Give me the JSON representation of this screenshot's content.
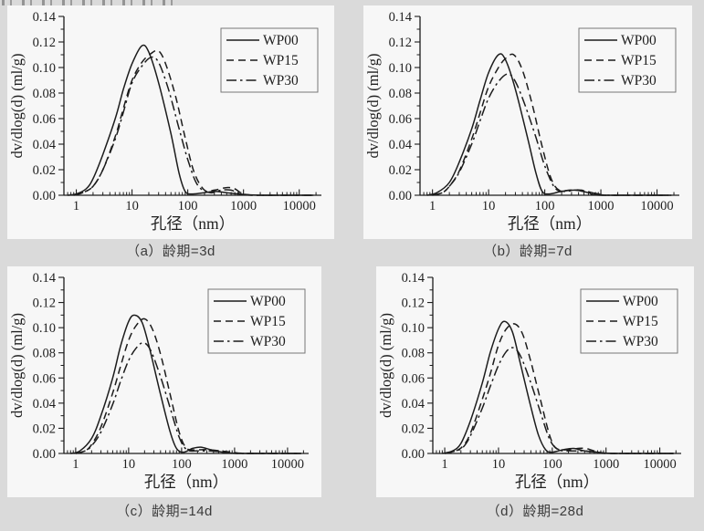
{
  "page": {
    "background": "#dadada",
    "panel_background": "#f7f7f7",
    "line_color": "#1c1c1c"
  },
  "figure": {
    "xlabel": "孔径（nm）",
    "ylabel": "dv/dlog(d) (ml/g)",
    "x_ticks": [
      "1",
      "10",
      "100",
      "1000",
      "10000"
    ],
    "x_tick_values": [
      1,
      10,
      100,
      1000,
      10000
    ],
    "y_ticks": [
      "0.00",
      "0.02",
      "0.04",
      "0.06",
      "0.08",
      "0.10",
      "0.12",
      "0.14"
    ],
    "x_range_log": [
      0.6,
      25000
    ],
    "y_range": [
      0,
      0.14
    ],
    "legend": [
      {
        "label": "WP00",
        "style": "solid"
      },
      {
        "label": "WP15",
        "style": "dashed"
      },
      {
        "label": "WP30",
        "style": "dashdot"
      }
    ]
  },
  "chart_data": [
    {
      "type": "line",
      "title": "（a）龄期=3d",
      "age": "3d",
      "xlabel": "孔径（nm）",
      "ylabel": "dv/dlog(d) (ml/g)",
      "x_axis": "log, 1 to 10000 nm",
      "ylim": [
        0,
        0.14
      ],
      "series": [
        {
          "name": "WP00",
          "style": "solid",
          "x": [
            0.7,
            1,
            1.5,
            2,
            3,
            5,
            7,
            10,
            15,
            20,
            30,
            50,
            70,
            90,
            120,
            200,
            300,
            500,
            800,
            2000,
            18000
          ],
          "y": [
            0,
            0.001,
            0.005,
            0.013,
            0.032,
            0.06,
            0.083,
            0.103,
            0.117,
            0.112,
            0.088,
            0.048,
            0.017,
            0.003,
            0.001,
            0.002,
            0.003,
            0.002,
            0.001,
            0,
            0
          ]
        },
        {
          "name": "WP15",
          "style": "dashed",
          "x": [
            0.9,
            1.3,
            2,
            3,
            5,
            7,
            10,
            15,
            22,
            30,
            40,
            60,
            90,
            130,
            200,
            300,
            500,
            700,
            1000,
            2000,
            18000
          ],
          "y": [
            0,
            0.002,
            0.007,
            0.02,
            0.046,
            0.068,
            0.09,
            0.104,
            0.111,
            0.113,
            0.103,
            0.078,
            0.045,
            0.018,
            0.004,
            0.004,
            0.006,
            0.005,
            0.001,
            0,
            0
          ]
        },
        {
          "name": "WP30",
          "style": "dashdot",
          "x": [
            0.9,
            1.3,
            2,
            3,
            5,
            7,
            10,
            15,
            22,
            30,
            45,
            70,
            100,
            150,
            250,
            400,
            600,
            900,
            1500,
            18000
          ],
          "y": [
            0,
            0.002,
            0.007,
            0.02,
            0.044,
            0.065,
            0.088,
            0.101,
            0.108,
            0.104,
            0.083,
            0.052,
            0.028,
            0.008,
            0.002,
            0.004,
            0.004,
            0.001,
            0,
            0
          ]
        }
      ]
    },
    {
      "type": "line",
      "title": "（b）龄期=7d",
      "age": "7d",
      "xlabel": "孔径（nm）",
      "ylabel": "dv/dlog(d) (ml/g)",
      "x_axis": "log, 1 to 10000 nm",
      "ylim": [
        0,
        0.14
      ],
      "series": [
        {
          "name": "WP00",
          "style": "solid",
          "x": [
            0.8,
            1.2,
            2,
            3,
            5,
            7,
            10,
            15,
            20,
            30,
            50,
            70,
            90,
            120,
            200,
            350,
            600,
            1000,
            18000
          ],
          "y": [
            0,
            0.002,
            0.01,
            0.026,
            0.052,
            0.074,
            0.096,
            0.11,
            0.106,
            0.083,
            0.044,
            0.017,
            0.003,
            0.001,
            0.003,
            0.004,
            0.002,
            0,
            0
          ]
        },
        {
          "name": "WP15",
          "style": "dashed",
          "x": [
            1,
            1.5,
            2,
            3,
            5,
            7,
            10,
            15,
            20,
            28,
            40,
            60,
            90,
            130,
            180,
            280,
            450,
            700,
            1200,
            18000
          ],
          "y": [
            0,
            0.002,
            0.007,
            0.019,
            0.044,
            0.064,
            0.085,
            0.1,
            0.107,
            0.11,
            0.098,
            0.071,
            0.038,
            0.013,
            0.004,
            0.004,
            0.004,
            0.002,
            0,
            0
          ]
        },
        {
          "name": "WP30",
          "style": "dashdot",
          "x": [
            1,
            1.5,
            2,
            3,
            5,
            7,
            10,
            15,
            22,
            30,
            45,
            70,
            100,
            150,
            220,
            350,
            550,
            900,
            1500,
            18000
          ],
          "y": [
            0,
            0.002,
            0.007,
            0.018,
            0.04,
            0.058,
            0.076,
            0.089,
            0.095,
            0.089,
            0.07,
            0.045,
            0.023,
            0.006,
            0.003,
            0.004,
            0.003,
            0.001,
            0,
            0
          ]
        }
      ]
    },
    {
      "type": "line",
      "title": "（c）龄期=14d",
      "age": "14d",
      "xlabel": "孔径（nm）",
      "ylabel": "dv/dlog(d) (ml/g)",
      "x_axis": "log, 1 to 10000 nm",
      "ylim": [
        0,
        0.14
      ],
      "series": [
        {
          "name": "WP00",
          "style": "solid",
          "x": [
            0.8,
            1.2,
            2,
            3,
            5,
            7,
            10,
            13,
            18,
            25,
            40,
            60,
            80,
            110,
            160,
            230,
            350,
            600,
            1200,
            18000
          ],
          "y": [
            0,
            0.002,
            0.012,
            0.03,
            0.06,
            0.085,
            0.105,
            0.11,
            0.104,
            0.083,
            0.047,
            0.018,
            0.004,
            0.001,
            0.004,
            0.005,
            0.003,
            0.001,
            0,
            0
          ]
        },
        {
          "name": "WP15",
          "style": "dashed",
          "x": [
            1,
            1.5,
            2,
            3,
            5,
            7,
            10,
            14,
            20,
            28,
            40,
            60,
            90,
            125,
            200,
            320,
            550,
            900,
            1800,
            18000
          ],
          "y": [
            0,
            0.002,
            0.007,
            0.021,
            0.048,
            0.069,
            0.09,
            0.102,
            0.107,
            0.099,
            0.079,
            0.048,
            0.017,
            0.004,
            0.003,
            0.003,
            0.002,
            0.001,
            0,
            0
          ]
        },
        {
          "name": "WP30",
          "style": "dashdot",
          "x": [
            1,
            1.5,
            2,
            3,
            5,
            7,
            10,
            14,
            19,
            26,
            40,
            60,
            90,
            125,
            200,
            350,
            650,
            1300,
            18000
          ],
          "y": [
            0,
            0.002,
            0.006,
            0.017,
            0.039,
            0.057,
            0.074,
            0.084,
            0.088,
            0.082,
            0.061,
            0.037,
            0.013,
            0.003,
            0.002,
            0.002,
            0.001,
            0,
            0
          ]
        }
      ]
    },
    {
      "type": "line",
      "title": "（d）龄期=28d",
      "age": "28d",
      "xlabel": "孔径（nm）",
      "ylabel": "dv/dlog(d) (ml/g)",
      "x_axis": "log, 1 to 10000 nm",
      "ylim": [
        0,
        0.14
      ],
      "series": [
        {
          "name": "WP00",
          "style": "solid",
          "x": [
            0.9,
            1.4,
            2,
            3,
            5,
            7,
            10,
            13,
            18,
            25,
            40,
            55,
            75,
            100,
            160,
            250,
            400,
            700,
            1500,
            18000
          ],
          "y": [
            0,
            0.002,
            0.008,
            0.026,
            0.056,
            0.08,
            0.099,
            0.105,
            0.097,
            0.073,
            0.037,
            0.015,
            0.003,
            0.001,
            0.003,
            0.004,
            0.002,
            0.001,
            0,
            0
          ]
        },
        {
          "name": "WP15",
          "style": "dashed",
          "x": [
            1,
            1.6,
            2.2,
            3,
            5,
            7,
            10,
            14,
            20,
            28,
            40,
            60,
            90,
            120,
            200,
            300,
            420,
            600,
            1000,
            18000
          ],
          "y": [
            0,
            0.002,
            0.006,
            0.016,
            0.043,
            0.063,
            0.086,
            0.099,
            0.103,
            0.095,
            0.073,
            0.043,
            0.014,
            0.004,
            0.003,
            0.004,
            0.004,
            0.002,
            0,
            0
          ]
        },
        {
          "name": "WP30",
          "style": "dashdot",
          "x": [
            1,
            1.6,
            2.2,
            3,
            5,
            7,
            10,
            14,
            19,
            26,
            40,
            60,
            90,
            130,
            220,
            400,
            700,
            1300,
            18000
          ],
          "y": [
            0,
            0.002,
            0.005,
            0.014,
            0.036,
            0.053,
            0.07,
            0.081,
            0.084,
            0.077,
            0.056,
            0.033,
            0.011,
            0.003,
            0.002,
            0.002,
            0.001,
            0,
            0
          ]
        }
      ]
    }
  ]
}
